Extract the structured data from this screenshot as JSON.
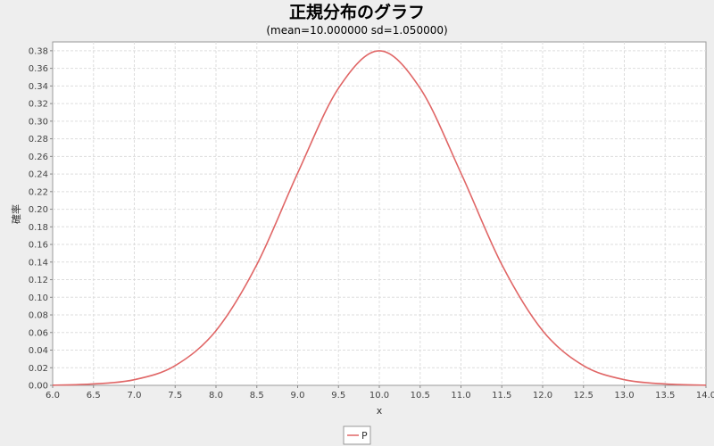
{
  "chart_data": {
    "type": "line",
    "title": "正規分布のグラフ",
    "subtitle": "(mean=10.000000 sd=1.050000)",
    "xlabel": "x",
    "ylabel": "確率",
    "xlim": [
      6.0,
      14.0
    ],
    "ylim": [
      0.0,
      0.39
    ],
    "x_ticks": [
      "6.0",
      "6.5",
      "7.0",
      "7.5",
      "8.0",
      "8.5",
      "9.0",
      "9.5",
      "10.0",
      "10.5",
      "11.0",
      "11.5",
      "12.0",
      "12.5",
      "13.0",
      "13.5",
      "14.0"
    ],
    "y_ticks": [
      "0.00",
      "0.02",
      "0.04",
      "0.06",
      "0.08",
      "0.10",
      "0.12",
      "0.14",
      "0.16",
      "0.18",
      "0.20",
      "0.22",
      "0.24",
      "0.26",
      "0.28",
      "0.30",
      "0.32",
      "0.34",
      "0.36",
      "0.38"
    ],
    "grid": true,
    "legend_position": "bottom",
    "series": [
      {
        "name": "P",
        "color": "#e06666",
        "x": [
          6.0,
          6.5,
          7.0,
          7.5,
          8.0,
          8.5,
          9.0,
          9.5,
          10.0,
          10.5,
          11.0,
          11.5,
          12.0,
          12.5,
          13.0,
          13.5,
          14.0
        ],
        "values": [
          0.0002,
          0.0016,
          0.0064,
          0.0224,
          0.0621,
          0.1371,
          0.241,
          0.3374,
          0.3799,
          0.3374,
          0.241,
          0.1371,
          0.0621,
          0.0224,
          0.0064,
          0.0016,
          0.0002
        ]
      }
    ]
  }
}
